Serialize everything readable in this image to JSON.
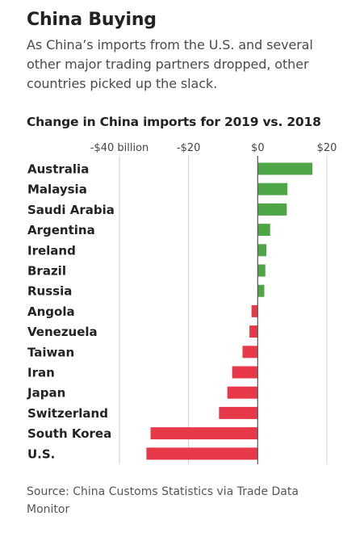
{
  "header": {
    "title": "China Buying",
    "subtitle": "As China’s imports from the U.S. and several other major trading partners dropped, other countries picked up the slack."
  },
  "chart_data": {
    "type": "bar",
    "orientation": "horizontal",
    "title": "Change in China imports for 2019 vs. 2018",
    "xlabel": "",
    "ylabel": "",
    "unit": "billion",
    "xlim": [
      -40,
      20
    ],
    "ticks": [
      -40,
      -20,
      0,
      20
    ],
    "tick_labels": [
      "-$40 billion",
      "-$20",
      "$0",
      "$20"
    ],
    "grid": true,
    "categories": [
      "Australia",
      "Malaysia",
      "Saudi Arabia",
      "Argentina",
      "Ireland",
      "Brazil",
      "Russia",
      "Angola",
      "Venezuela",
      "Taiwan",
      "Iran",
      "Japan",
      "Switzerland",
      "South Korea",
      "U.S."
    ],
    "values": [
      15.8,
      8.6,
      8.4,
      3.6,
      2.5,
      2.2,
      1.9,
      -1.8,
      -2.4,
      -4.4,
      -7.4,
      -8.8,
      -11.2,
      -31.0,
      -32.2
    ],
    "colors": {
      "positive": "#4ea546",
      "negative": "#e8394a",
      "grid": "#cccccc",
      "zero_line": "#555555"
    }
  },
  "footer": {
    "source": "Source: China Customs Statistics via Trade Data Monitor"
  }
}
